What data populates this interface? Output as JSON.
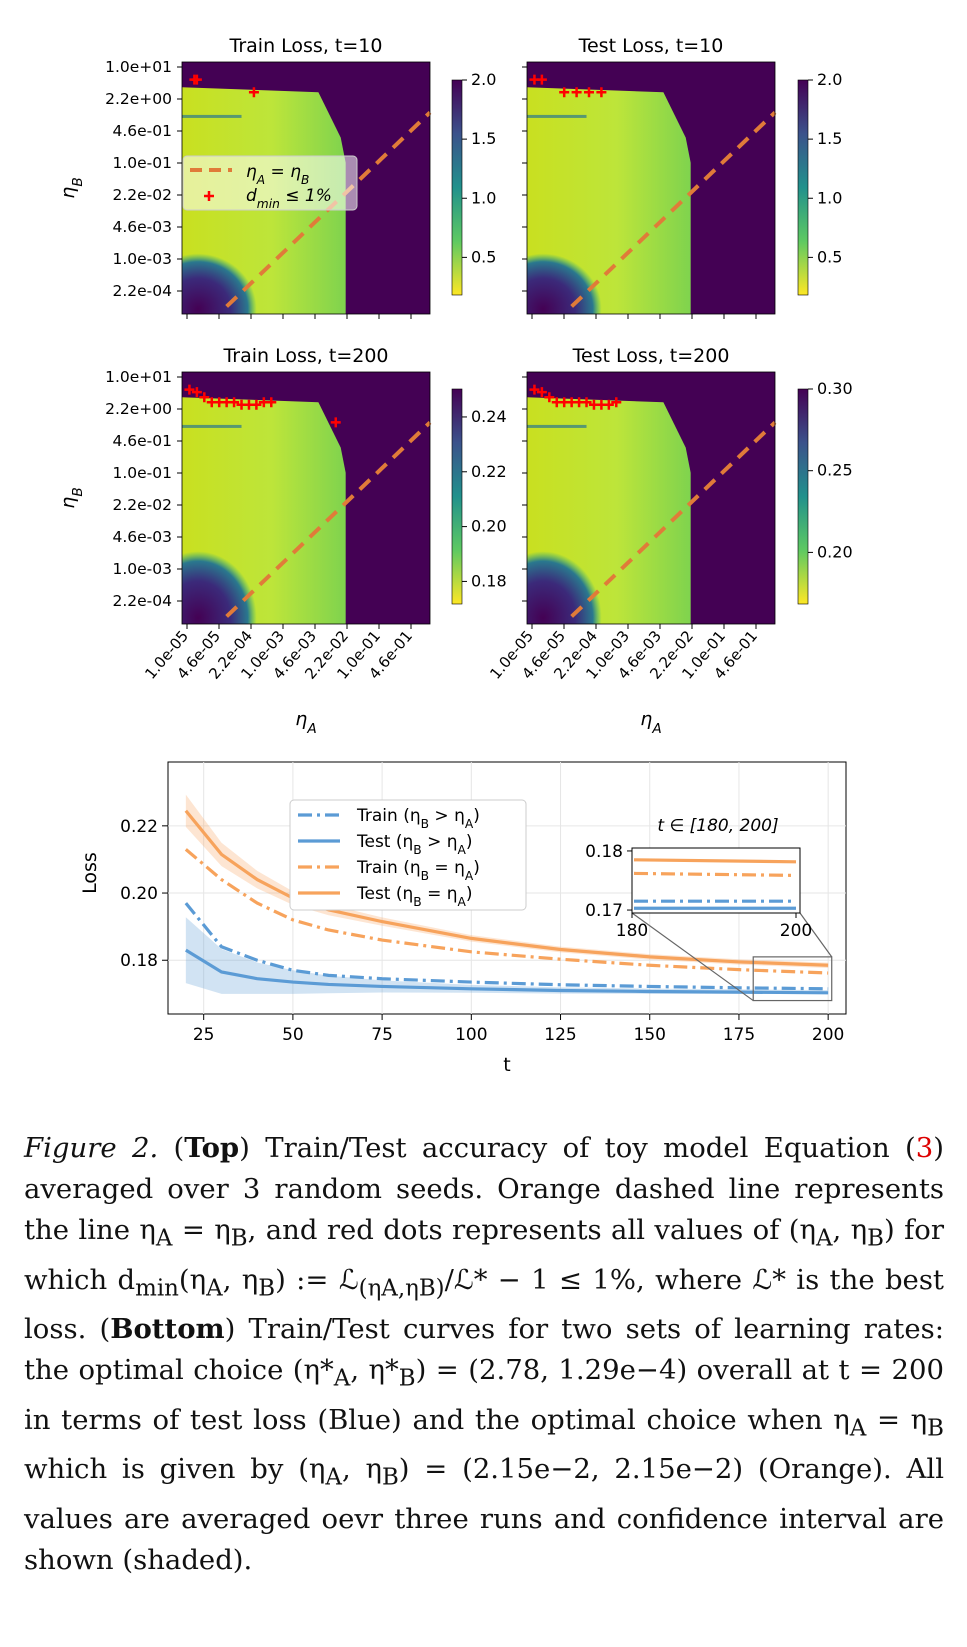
{
  "figure": {
    "heatmaps": [
      {
        "title": "Train Loss, t=10",
        "colorbar_ticks": [
          "2.0",
          "1.5",
          "1.0",
          "0.5"
        ]
      },
      {
        "title": "Test Loss, t=10",
        "colorbar_ticks": [
          "2.0",
          "1.5",
          "1.0",
          "0.5"
        ]
      },
      {
        "title": "Train Loss, t=200",
        "colorbar_ticks": [
          "0.24",
          "0.22",
          "0.20",
          "0.18"
        ]
      },
      {
        "title": "Test Loss, t=200",
        "colorbar_ticks": [
          "0.30",
          "0.25",
          "0.20"
        ]
      }
    ],
    "y_ticks": [
      "1.0e+01",
      "2.2e+00",
      "4.6e-01",
      "1.0e-01",
      "2.2e-02",
      "4.6e-03",
      "1.0e-03",
      "2.2e-04"
    ],
    "x_ticks": [
      "1.0e-05",
      "4.6e-05",
      "2.2e-04",
      "1.0e-03",
      "4.6e-03",
      "2.2e-02",
      "1.0e-01",
      "4.6e-01"
    ],
    "heat_ylabel": "η_B",
    "heat_xlabel": "η_A",
    "heat_legend": [
      "η_A = η_B",
      "d_min ≤ 1%"
    ],
    "colors": {
      "high": "#440154",
      "mid": "#21918c",
      "low": "#fde725",
      "diag": "#e07b39",
      "marker": "#ff0000",
      "blue": "#5b9bd5",
      "orange": "#f7a35c"
    }
  },
  "chart_data": {
    "type": "line",
    "xlabel": "t",
    "ylabel": "Loss",
    "xlim": [
      15,
      205
    ],
    "ylim": [
      0.164,
      0.239
    ],
    "x_ticks": [
      "25",
      "50",
      "75",
      "100",
      "125",
      "150",
      "175",
      "200"
    ],
    "y_ticks": [
      "0.18",
      "0.20",
      "0.22"
    ],
    "grid": true,
    "legend_position": "top-center",
    "x": [
      20,
      30,
      40,
      50,
      60,
      75,
      100,
      125,
      150,
      175,
      200
    ],
    "series": [
      {
        "name": "Train (η_B > η_A)",
        "style": "dashdot",
        "color": "#5b9bd5",
        "values": [
          0.197,
          0.184,
          0.18,
          0.177,
          0.1755,
          0.1745,
          0.1735,
          0.1727,
          0.1722,
          0.1718,
          0.1715
        ]
      },
      {
        "name": "Test (η_B > η_A)",
        "style": "solid",
        "color": "#5b9bd5",
        "values": [
          0.183,
          0.1765,
          0.1745,
          0.1735,
          0.1728,
          0.1722,
          0.1715,
          0.171,
          0.1707,
          0.1705,
          0.1703
        ]
      },
      {
        "name": "Train (η_B = η_A)",
        "style": "dashdot",
        "color": "#f7a35c",
        "values": [
          0.213,
          0.204,
          0.197,
          0.192,
          0.189,
          0.186,
          0.1825,
          0.1803,
          0.1785,
          0.1772,
          0.1762
        ]
      },
      {
        "name": "Test (η_B = η_A)",
        "style": "solid",
        "color": "#f7a35c",
        "values": [
          0.2245,
          0.2115,
          0.204,
          0.1985,
          0.195,
          0.1915,
          0.1865,
          0.1832,
          0.181,
          0.1795,
          0.1785
        ]
      }
    ],
    "inset": {
      "title": "t ∈ [180, 200]",
      "x_ticks": [
        "180",
        "200"
      ],
      "y_ticks": [
        "0.18",
        "0.17"
      ]
    }
  },
  "caption": {
    "label": "Figure 2.",
    "text1": " (",
    "bold1": "Top",
    "text2": ") Train/Test accuracy of toy model Equation (",
    "eqref": "3",
    "text3": ") averaged over 3 random seeds. Orange dashed line represents the line η",
    "text3b": "A",
    "text3c": " = η",
    "text3d": "B",
    "text4": ", and red dots represents all values of (η",
    "text4b": "A",
    "text4c": ", η",
    "text4d": "B",
    "text4e": ") for which d",
    "text4f": "min",
    "text4g": "(η",
    "text4h": "A",
    "text4i": ", η",
    "text4j": "B",
    "text4k": ") := ℒ",
    "text4l": "(ηA,ηB)",
    "text4m": "/ℒ* − 1 ≤ 1%, where ℒ* is the best loss. (",
    "bold2": "Bottom",
    "text5": ") Train/Test curves for two sets of learning rates: the optimal choice (η*",
    "text5b": "A",
    "text5c": ", η*",
    "text5d": "B",
    "text5e": ") = (2.78, 1.29e−4) overall at t = 200 in terms of test loss (Blue) and the optimal choice when η",
    "text5f": "A",
    "text5g": " = η",
    "text5h": "B",
    "text5i": " which is given by (η",
    "text5j": "A",
    "text5k": ", η",
    "text5l": "B",
    "text5m": ") = (2.15e−2, 2.15e−2) (Orange). All values are averaged oevr three runs and confidence interval are shown (shaded)."
  }
}
